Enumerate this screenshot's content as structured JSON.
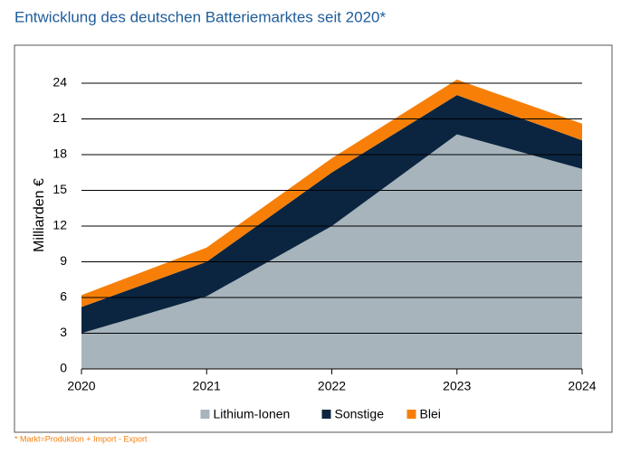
{
  "chart_data": {
    "type": "stacked_area",
    "title": "Entwicklung des deutschen Batteriemarktes seit 2020*",
    "y_label": "Milliarden €",
    "footnote": "* Markt=Produktion + Import - Export",
    "categories": [
      "2020",
      "2021",
      "2022",
      "2023",
      "2024"
    ],
    "series": [
      {
        "name": "Lithium-Ionen",
        "color": "#a7b4bc",
        "values": [
          3.0,
          6.1,
          12.0,
          19.7,
          16.8
        ]
      },
      {
        "name": "Sonstige",
        "color": "#0b2540",
        "values": [
          2.2,
          2.9,
          4.5,
          3.3,
          2.4
        ]
      },
      {
        "name": "Blei",
        "color": "#f77f08",
        "values": [
          1.0,
          1.2,
          1.2,
          1.3,
          1.4
        ]
      }
    ],
    "ylim": [
      0,
      24
    ],
    "yticks": [
      0,
      3,
      6,
      9,
      12,
      15,
      18,
      21,
      24
    ],
    "grid": true,
    "legend": "bottom"
  }
}
